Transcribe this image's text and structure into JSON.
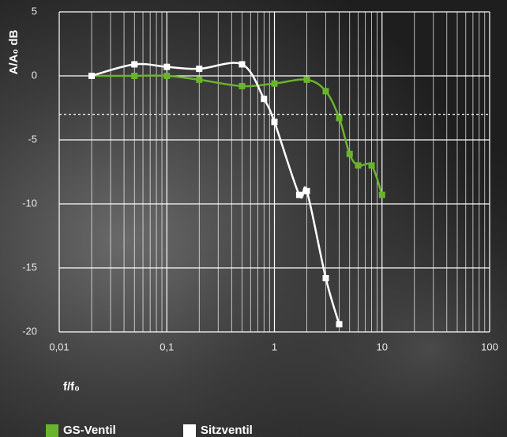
{
  "chart_data": {
    "type": "line",
    "y_label": "A/A₀ dB",
    "x_label": "f/f₀",
    "x_scale": "log",
    "grid": true,
    "xlim": [
      0.01,
      100
    ],
    "ylim": [
      -20,
      5
    ],
    "xticks": [
      {
        "value": 0.01,
        "label": "0,01"
      },
      {
        "value": 0.1,
        "label": "0,1"
      },
      1,
      10,
      100
    ],
    "yticks": [
      5,
      0,
      -5,
      -10,
      -15,
      -20
    ],
    "reference_line": -3,
    "legend": "bottom-left",
    "series": [
      {
        "name": "GS-Ventil",
        "color": "#6ab42d",
        "x": [
          0.02,
          0.05,
          0.1,
          0.2,
          0.5,
          1,
          2,
          3,
          4,
          5,
          6,
          8,
          10
        ],
        "values": [
          0,
          0,
          0,
          -0.3,
          -0.8,
          -0.6,
          -0.3,
          -1.2,
          -3.3,
          -6.1,
          -7.0,
          -7.0,
          -9.3
        ]
      },
      {
        "name": "Sitzventil",
        "color": "#ffffff",
        "x": [
          0.02,
          0.05,
          0.1,
          0.2,
          0.5,
          0.8,
          1,
          1.7,
          2,
          3,
          4
        ],
        "values": [
          0,
          0.9,
          0.7,
          0.55,
          0.9,
          -1.8,
          -3.6,
          -9.3,
          -9.0,
          -15.8,
          -19.4
        ]
      }
    ]
  }
}
